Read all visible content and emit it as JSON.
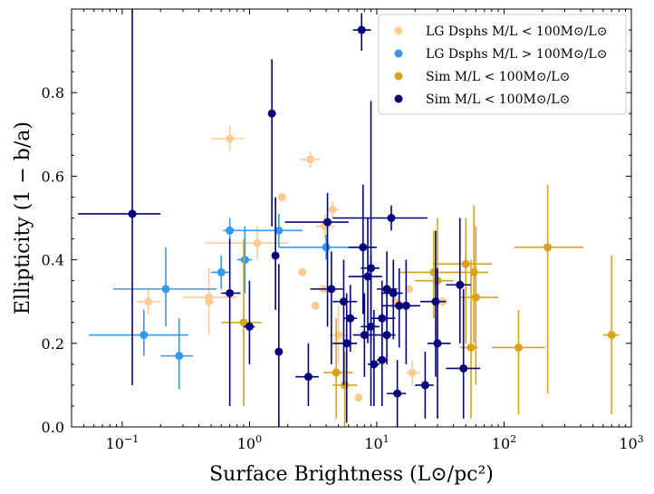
{
  "chart_data": {
    "type": "scatter",
    "xlabel": "Surface Brightness (L⊙/pc²)",
    "ylabel": "Ellipticity (1 − b/a)",
    "xscale": "log",
    "xlim": [
      0.04,
      1000
    ],
    "ylim": [
      0,
      1
    ],
    "x_ticks": [
      {
        "value": 0.1,
        "base": "10",
        "exp": "−1"
      },
      {
        "value": 1,
        "base": "10",
        "exp": "0"
      },
      {
        "value": 10,
        "base": "10",
        "exp": "1"
      },
      {
        "value": 100,
        "base": "10",
        "exp": "2"
      },
      {
        "value": 1000,
        "base": "10",
        "exp": "3"
      }
    ],
    "y_ticks": [
      "0.0",
      "0.2",
      "0.4",
      "0.6",
      "0.8"
    ],
    "grid": false,
    "legend_position": "top-right",
    "series": [
      {
        "name": "LG Dsphs M/L < 100M⊙/L⊙",
        "color": "#fdcb93",
        "points": [
          {
            "x": 0.16,
            "y": 0.3,
            "xlo": 0.13,
            "xhi": 0.2,
            "ylo": 0.27,
            "yhi": 0.33
          },
          {
            "x": 0.48,
            "y": 0.31,
            "xlo": 0.3,
            "xhi": 0.8,
            "ylo": 0.28,
            "yhi": 0.33
          },
          {
            "x": 0.48,
            "y": 0.3,
            "xlo": 0.45,
            "xhi": 0.52,
            "ylo": 0.22,
            "yhi": 0.38
          },
          {
            "x": 0.7,
            "y": 0.69,
            "xlo": 0.5,
            "xhi": 0.9,
            "ylo": 0.66,
            "yhi": 0.72
          },
          {
            "x": 1.15,
            "y": 0.44,
            "xlo": 0.45,
            "xhi": 2.0,
            "ylo": 0.4,
            "yhi": 0.48
          },
          {
            "x": 1.8,
            "y": 0.55
          },
          {
            "x": 2.6,
            "y": 0.37
          },
          {
            "x": 3.0,
            "y": 0.64,
            "xlo": 2.5,
            "xhi": 3.6,
            "ylo": 0.62,
            "yhi": 0.66
          },
          {
            "x": 3.3,
            "y": 0.29
          },
          {
            "x": 3.8,
            "y": 0.33
          },
          {
            "x": 3.9,
            "y": 0.48,
            "xlo": 3.3,
            "xhi": 4.7,
            "ylo": 0.45,
            "yhi": 0.51
          },
          {
            "x": 4.5,
            "y": 0.52,
            "xlo": 4.0,
            "xhi": 5.1,
            "ylo": 0.5,
            "yhi": 0.54
          },
          {
            "x": 5.0,
            "y": 0.22,
            "xlo": 4.2,
            "xhi": 6.0,
            "ylo": 0.15,
            "yhi": 0.29
          },
          {
            "x": 6.0,
            "y": 0.2
          },
          {
            "x": 7.2,
            "y": 0.07
          },
          {
            "x": 14.0,
            "y": 0.3
          },
          {
            "x": 18.0,
            "y": 0.33
          },
          {
            "x": 19.0,
            "y": 0.13,
            "xlo": 17.0,
            "xhi": 22.0,
            "ylo": 0.1,
            "yhi": 0.16
          },
          {
            "x": 33.0,
            "y": 0.3
          }
        ]
      },
      {
        "name": "LG Dsphs M/L > 100M⊙/L⊙",
        "color": "#3399ee",
        "points": [
          {
            "x": 0.148,
            "y": 0.22,
            "xlo": 0.055,
            "xhi": 0.33,
            "ylo": 0.17,
            "yhi": 0.28
          },
          {
            "x": 0.22,
            "y": 0.33,
            "xlo": 0.085,
            "xhi": 0.55,
            "ylo": 0.24,
            "yhi": 0.43
          },
          {
            "x": 0.28,
            "y": 0.17,
            "xlo": 0.2,
            "xhi": 0.36,
            "ylo": 0.09,
            "yhi": 0.26
          },
          {
            "x": 0.6,
            "y": 0.37,
            "xlo": 0.5,
            "xhi": 0.7,
            "ylo": 0.33,
            "yhi": 0.41
          },
          {
            "x": 0.7,
            "y": 0.47,
            "xlo": 0.62,
            "xhi": 0.8,
            "ylo": 0.44,
            "yhi": 0.5
          },
          {
            "x": 0.92,
            "y": 0.4,
            "xlo": 0.8,
            "xhi": 1.05,
            "ylo": 0.32,
            "yhi": 0.48
          },
          {
            "x": 1.7,
            "y": 0.47,
            "xlo": 0.8,
            "xhi": 2.6,
            "ylo": 0.43,
            "yhi": 0.51
          },
          {
            "x": 4.0,
            "y": 0.43,
            "xlo": 1.7,
            "xhi": 9.0,
            "ylo": 0.4,
            "yhi": 0.46
          }
        ]
      },
      {
        "name": "Sim M/L < 100M⊙/L⊙",
        "color": "#d9a21c",
        "points": [
          {
            "x": 0.9,
            "y": 0.25,
            "xlo": 0.6,
            "xhi": 1.25,
            "ylo": 0.05,
            "yhi": 0.45
          },
          {
            "x": 4.8,
            "y": 0.13,
            "xlo": 3.8,
            "xhi": 6.5,
            "ylo": 0.02,
            "yhi": 0.26
          },
          {
            "x": 5.6,
            "y": 0.1,
            "xlo": 4.5,
            "xhi": 7.0,
            "ylo": 0.0,
            "yhi": 0.18
          },
          {
            "x": 28.0,
            "y": 0.37,
            "xlo": 15.0,
            "xhi": 45.0,
            "ylo": 0.26,
            "yhi": 0.47
          },
          {
            "x": 30.0,
            "y": 0.35,
            "xlo": 20.0,
            "xhi": 40.0,
            "ylo": 0.2,
            "yhi": 0.5
          },
          {
            "x": 50.0,
            "y": 0.39,
            "xlo": 28.0,
            "xhi": 80.0,
            "ylo": 0.2,
            "yhi": 0.5
          },
          {
            "x": 55.0,
            "y": 0.19,
            "xlo": 45.0,
            "xhi": 62.0,
            "ylo": 0.02,
            "yhi": 0.4
          },
          {
            "x": 58.0,
            "y": 0.37,
            "xlo": 40.0,
            "xhi": 75.0,
            "ylo": 0.2,
            "yhi": 0.53
          },
          {
            "x": 60.0,
            "y": 0.31,
            "xlo": 45.0,
            "xhi": 90.0,
            "ylo": 0.1,
            "yhi": 0.48
          },
          {
            "x": 130.0,
            "y": 0.19,
            "xlo": 80.0,
            "xhi": 210.0,
            "ylo": 0.03,
            "yhi": 0.28
          },
          {
            "x": 220.0,
            "y": 0.43,
            "xlo": 120.0,
            "xhi": 420.0,
            "ylo": 0.08,
            "yhi": 0.58
          },
          {
            "x": 700.0,
            "y": 0.22,
            "xlo": 600.0,
            "xhi": 800.0,
            "ylo": 0.03,
            "yhi": 0.41
          }
        ]
      },
      {
        "name": "Sim M/L < 100M⊙/L⊙",
        "color": "#03037a",
        "points": [
          {
            "x": 0.12,
            "y": 0.51,
            "xlo": 0.045,
            "xhi": 0.2,
            "ylo": 0.1,
            "yhi": 1.0
          },
          {
            "x": 0.7,
            "y": 0.32,
            "xlo": 0.6,
            "xhi": 0.85,
            "ylo": 0.05,
            "yhi": 0.45
          },
          {
            "x": 1.0,
            "y": 0.24,
            "xlo": 0.9,
            "xhi": 1.1,
            "ylo": 0.15,
            "yhi": 0.35
          },
          {
            "x": 1.5,
            "y": 0.75,
            "xlo": 1.4,
            "xhi": 1.6,
            "ylo": 0.48,
            "yhi": 0.88
          },
          {
            "x": 1.6,
            "y": 0.41,
            "xlo": 1.5,
            "xhi": 1.7,
            "ylo": 0.28,
            "yhi": 0.55
          },
          {
            "x": 1.7,
            "y": 0.18,
            "xlo": 1.6,
            "xhi": 1.8,
            "ylo": 0.0,
            "yhi": 0.39
          },
          {
            "x": 2.9,
            "y": 0.12,
            "xlo": 2.3,
            "xhi": 3.5,
            "ylo": 0.05,
            "yhi": 0.2
          },
          {
            "x": 4.1,
            "y": 0.49,
            "xlo": 1.9,
            "xhi": 6.0,
            "ylo": 0.24,
            "yhi": 0.56
          },
          {
            "x": 4.4,
            "y": 0.33,
            "xlo": 3.0,
            "xhi": 5.5,
            "ylo": 0.15,
            "yhi": 0.42
          },
          {
            "x": 5.5,
            "y": 0.3,
            "xlo": 4.5,
            "xhi": 7.0,
            "ylo": 0.1,
            "yhi": 0.4
          },
          {
            "x": 5.8,
            "y": 0.2,
            "xlo": 4.5,
            "xhi": 7.0,
            "ylo": 0.01,
            "yhi": 0.32
          },
          {
            "x": 6.2,
            "y": 0.26,
            "xlo": 5.5,
            "xhi": 7.0,
            "ylo": 0.18,
            "yhi": 0.34
          },
          {
            "x": 7.6,
            "y": 0.95,
            "xlo": 6.5,
            "xhi": 9.0,
            "ylo": 0.9,
            "yhi": 0.99
          },
          {
            "x": 7.8,
            "y": 0.43,
            "xlo": 6.0,
            "xhi": 10.0,
            "ylo": 0.27,
            "yhi": 0.58
          },
          {
            "x": 8.0,
            "y": 0.22,
            "xlo": 6.5,
            "xhi": 10.0,
            "ylo": 0.12,
            "yhi": 0.32
          },
          {
            "x": 8.5,
            "y": 0.36,
            "xlo": 6.0,
            "xhi": 11.0,
            "ylo": 0.2,
            "yhi": 0.5
          },
          {
            "x": 9.0,
            "y": 0.24,
            "xlo": 7.5,
            "xhi": 10.5,
            "ylo": 0.05,
            "yhi": 0.41
          },
          {
            "x": 9.0,
            "y": 0.38,
            "xlo": 7.5,
            "xhi": 10.5,
            "ylo": 0.2,
            "yhi": 0.78
          },
          {
            "x": 9.5,
            "y": 0.15,
            "xlo": 8.5,
            "xhi": 10.5,
            "ylo": 0.05,
            "yhi": 0.28
          },
          {
            "x": 11.0,
            "y": 0.16,
            "xlo": 10.0,
            "xhi": 12.0,
            "ylo": 0.05,
            "yhi": 0.27
          },
          {
            "x": 11.0,
            "y": 0.26,
            "xlo": 9.0,
            "xhi": 14.0,
            "ylo": 0.17,
            "yhi": 0.35
          },
          {
            "x": 12.0,
            "y": 0.33,
            "xlo": 10.0,
            "xhi": 14.5,
            "ylo": 0.25,
            "yhi": 0.42
          },
          {
            "x": 12.0,
            "y": 0.22,
            "xlo": 10.0,
            "xhi": 14.0,
            "ylo": 0.15,
            "yhi": 0.29
          },
          {
            "x": 13.0,
            "y": 0.5,
            "xlo": 4.5,
            "xhi": 25.0,
            "ylo": 0.47,
            "yhi": 0.53
          },
          {
            "x": 13.5,
            "y": 0.32,
            "xlo": 11.0,
            "xhi": 16.0,
            "ylo": 0.21,
            "yhi": 0.4
          },
          {
            "x": 14.5,
            "y": 0.08,
            "xlo": 12.0,
            "xhi": 17.0,
            "ylo": 0.0,
            "yhi": 0.16
          },
          {
            "x": 15.0,
            "y": 0.29,
            "xlo": 11.0,
            "xhi": 20.0,
            "ylo": 0.19,
            "yhi": 0.38
          },
          {
            "x": 17.0,
            "y": 0.29,
            "xlo": 13.0,
            "xhi": 22.0,
            "ylo": 0.15,
            "yhi": 0.4
          },
          {
            "x": 24.0,
            "y": 0.1,
            "xlo": 20.0,
            "xhi": 28.0,
            "ylo": 0.02,
            "yhi": 0.18
          },
          {
            "x": 29.0,
            "y": 0.3,
            "xlo": 22.0,
            "xhi": 35.0,
            "ylo": 0.12,
            "yhi": 0.47
          },
          {
            "x": 30.0,
            "y": 0.2,
            "xlo": 25.0,
            "xhi": 38.0,
            "ylo": 0.02,
            "yhi": 0.38
          },
          {
            "x": 45.0,
            "y": 0.34,
            "xlo": 35.0,
            "xhi": 55.0,
            "ylo": 0.2,
            "yhi": 0.5
          },
          {
            "x": 48.0,
            "y": 0.14,
            "xlo": 35.0,
            "xhi": 65.0,
            "ylo": 0.02,
            "yhi": 0.33
          }
        ]
      }
    ]
  }
}
